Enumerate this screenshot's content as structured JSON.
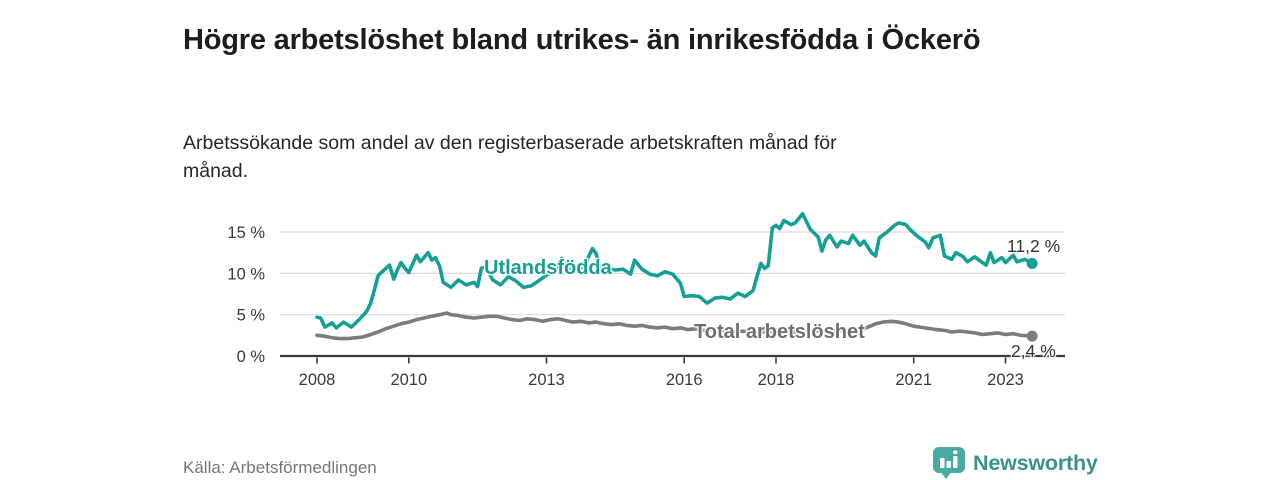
{
  "header": {
    "title": "Högre arbetslöshet bland utrikes- än inrikesfödda i Öckerö",
    "subtitle": "Arbetssökande som andel av den registerbaserade arbetskraften månad för månad."
  },
  "footer": {
    "source": "Källa: Arbetsförmedlingen",
    "brand": "Newsworthy"
  },
  "colors": {
    "accent_teal": "#16a095",
    "series_gray": "#7c7c7e",
    "brand_teal": "#3b928b",
    "brand_icon_teal": "#4aa9a1",
    "axis": "#3a3a3a",
    "grid": "#dcdcdc",
    "end_label": "#333333"
  },
  "chart_data": {
    "type": "line",
    "title": "Högre arbetslöshet bland utrikes- än inrikesfödda i Öckerö",
    "subtitle": "Arbetssökande som andel av den registerbaserade arbetskraften månad för månad.",
    "xlabel": "",
    "ylabel": "",
    "ylim": [
      0,
      18
    ],
    "xlim": [
      2007.2,
      2024.3
    ],
    "grid": "horizontal",
    "legend_position": "inline-labels",
    "y_ticks": [
      {
        "value": 0,
        "label": "0 %"
      },
      {
        "value": 5,
        "label": "5 %"
      },
      {
        "value": 10,
        "label": "10 %"
      },
      {
        "value": 15,
        "label": "15 %"
      }
    ],
    "x_ticks": [
      {
        "value": 2008,
        "label": "2008"
      },
      {
        "value": 2010,
        "label": "2010"
      },
      {
        "value": 2013,
        "label": "2013"
      },
      {
        "value": 2016,
        "label": "2016"
      },
      {
        "value": 2018,
        "label": "2018"
      },
      {
        "value": 2021,
        "label": "2021"
      },
      {
        "value": 2023,
        "label": "2023"
      }
    ],
    "series": [
      {
        "name": "Utlandsfödda",
        "color": "#16a095",
        "end_label": "11,2 %",
        "end_value": 11.2,
        "points": [
          [
            2008.0,
            4.7
          ],
          [
            2008.08,
            4.6
          ],
          [
            2008.17,
            3.5
          ],
          [
            2008.33,
            4.0
          ],
          [
            2008.42,
            3.4
          ],
          [
            2008.58,
            4.1
          ],
          [
            2008.75,
            3.5
          ],
          [
            2008.92,
            4.4
          ],
          [
            2009.0,
            4.9
          ],
          [
            2009.08,
            5.4
          ],
          [
            2009.17,
            6.4
          ],
          [
            2009.25,
            8.0
          ],
          [
            2009.33,
            9.7
          ],
          [
            2009.42,
            10.2
          ],
          [
            2009.58,
            11.0
          ],
          [
            2009.67,
            9.3
          ],
          [
            2009.75,
            10.4
          ],
          [
            2009.83,
            11.3
          ],
          [
            2009.92,
            10.6
          ],
          [
            2010.0,
            10.1
          ],
          [
            2010.17,
            12.2
          ],
          [
            2010.25,
            11.4
          ],
          [
            2010.42,
            12.5
          ],
          [
            2010.5,
            11.6
          ],
          [
            2010.58,
            11.9
          ],
          [
            2010.67,
            10.9
          ],
          [
            2010.75,
            8.9
          ],
          [
            2010.92,
            8.3
          ],
          [
            2011.08,
            9.2
          ],
          [
            2011.25,
            8.6
          ],
          [
            2011.42,
            8.9
          ],
          [
            2011.5,
            8.4
          ],
          [
            2011.58,
            10.6
          ],
          [
            2011.67,
            10.8
          ],
          [
            2011.83,
            9.2
          ],
          [
            2012.0,
            8.6
          ],
          [
            2012.17,
            9.6
          ],
          [
            2012.33,
            9.1
          ],
          [
            2012.5,
            8.3
          ],
          [
            2012.67,
            8.5
          ],
          [
            2012.83,
            9.1
          ],
          [
            2013.0,
            9.8
          ],
          [
            2013.17,
            10.2
          ],
          [
            2013.33,
            11.8
          ],
          [
            2013.5,
            10.4
          ],
          [
            2013.67,
            10.3
          ],
          [
            2013.83,
            11.0
          ],
          [
            2014.0,
            13.0
          ],
          [
            2014.08,
            12.4
          ],
          [
            2014.17,
            10.4
          ],
          [
            2014.33,
            10.6
          ],
          [
            2014.5,
            10.4
          ],
          [
            2014.67,
            10.5
          ],
          [
            2014.83,
            9.9
          ],
          [
            2014.92,
            11.6
          ],
          [
            2015.08,
            10.5
          ],
          [
            2015.25,
            9.9
          ],
          [
            2015.42,
            9.7
          ],
          [
            2015.58,
            10.2
          ],
          [
            2015.75,
            9.9
          ],
          [
            2015.92,
            8.8
          ],
          [
            2016.0,
            7.2
          ],
          [
            2016.17,
            7.3
          ],
          [
            2016.33,
            7.2
          ],
          [
            2016.5,
            6.4
          ],
          [
            2016.67,
            7.0
          ],
          [
            2016.83,
            7.1
          ],
          [
            2017.0,
            6.9
          ],
          [
            2017.17,
            7.6
          ],
          [
            2017.33,
            7.2
          ],
          [
            2017.5,
            7.9
          ],
          [
            2017.58,
            9.5
          ],
          [
            2017.67,
            11.2
          ],
          [
            2017.75,
            10.6
          ],
          [
            2017.83,
            10.9
          ],
          [
            2017.92,
            15.5
          ],
          [
            2018.0,
            15.8
          ],
          [
            2018.08,
            15.4
          ],
          [
            2018.17,
            16.4
          ],
          [
            2018.33,
            15.9
          ],
          [
            2018.42,
            16.1
          ],
          [
            2018.58,
            17.2
          ],
          [
            2018.75,
            15.3
          ],
          [
            2018.92,
            14.4
          ],
          [
            2019.0,
            12.7
          ],
          [
            2019.08,
            14.0
          ],
          [
            2019.17,
            14.6
          ],
          [
            2019.33,
            13.2
          ],
          [
            2019.42,
            13.9
          ],
          [
            2019.58,
            13.6
          ],
          [
            2019.67,
            14.6
          ],
          [
            2019.83,
            13.4
          ],
          [
            2019.92,
            13.9
          ],
          [
            2020.08,
            12.5
          ],
          [
            2020.17,
            12.1
          ],
          [
            2020.25,
            14.3
          ],
          [
            2020.42,
            15.0
          ],
          [
            2020.58,
            15.8
          ],
          [
            2020.67,
            16.1
          ],
          [
            2020.83,
            15.9
          ],
          [
            2020.92,
            15.3
          ],
          [
            2021.08,
            14.5
          ],
          [
            2021.25,
            13.8
          ],
          [
            2021.33,
            13.1
          ],
          [
            2021.42,
            14.3
          ],
          [
            2021.58,
            14.6
          ],
          [
            2021.67,
            12.1
          ],
          [
            2021.83,
            11.7
          ],
          [
            2021.92,
            12.5
          ],
          [
            2022.08,
            12.0
          ],
          [
            2022.17,
            11.4
          ],
          [
            2022.33,
            12.0
          ],
          [
            2022.42,
            11.6
          ],
          [
            2022.58,
            11.0
          ],
          [
            2022.67,
            12.5
          ],
          [
            2022.75,
            11.3
          ],
          [
            2022.92,
            11.9
          ],
          [
            2023.0,
            11.3
          ],
          [
            2023.17,
            12.2
          ],
          [
            2023.25,
            11.4
          ],
          [
            2023.42,
            11.7
          ],
          [
            2023.58,
            11.2
          ]
        ]
      },
      {
        "name": "Total arbetslöshet",
        "color": "#7c7c7e",
        "end_label": "2,4 %",
        "end_value": 2.4,
        "points": [
          [
            2008.0,
            2.5
          ],
          [
            2008.17,
            2.4
          ],
          [
            2008.33,
            2.2
          ],
          [
            2008.5,
            2.1
          ],
          [
            2008.67,
            2.1
          ],
          [
            2008.83,
            2.2
          ],
          [
            2009.0,
            2.3
          ],
          [
            2009.17,
            2.6
          ],
          [
            2009.33,
            2.9
          ],
          [
            2009.5,
            3.3
          ],
          [
            2009.67,
            3.6
          ],
          [
            2009.83,
            3.9
          ],
          [
            2010.0,
            4.1
          ],
          [
            2010.17,
            4.4
          ],
          [
            2010.33,
            4.6
          ],
          [
            2010.5,
            4.8
          ],
          [
            2010.67,
            5.0
          ],
          [
            2010.83,
            5.2
          ],
          [
            2010.92,
            5.0
          ],
          [
            2011.08,
            4.9
          ],
          [
            2011.25,
            4.7
          ],
          [
            2011.42,
            4.6
          ],
          [
            2011.58,
            4.7
          ],
          [
            2011.75,
            4.8
          ],
          [
            2011.92,
            4.8
          ],
          [
            2012.08,
            4.6
          ],
          [
            2012.25,
            4.4
          ],
          [
            2012.42,
            4.3
          ],
          [
            2012.58,
            4.5
          ],
          [
            2012.75,
            4.4
          ],
          [
            2012.92,
            4.2
          ],
          [
            2013.08,
            4.4
          ],
          [
            2013.25,
            4.5
          ],
          [
            2013.42,
            4.3
          ],
          [
            2013.58,
            4.1
          ],
          [
            2013.75,
            4.2
          ],
          [
            2013.92,
            4.0
          ],
          [
            2014.08,
            4.1
          ],
          [
            2014.25,
            3.9
          ],
          [
            2014.42,
            3.8
          ],
          [
            2014.58,
            3.9
          ],
          [
            2014.75,
            3.7
          ],
          [
            2014.92,
            3.6
          ],
          [
            2015.08,
            3.7
          ],
          [
            2015.25,
            3.5
          ],
          [
            2015.42,
            3.4
          ],
          [
            2015.58,
            3.5
          ],
          [
            2015.75,
            3.3
          ],
          [
            2015.92,
            3.4
          ],
          [
            2016.08,
            3.2
          ],
          [
            2016.25,
            3.3
          ],
          [
            2016.42,
            3.1
          ],
          [
            2016.58,
            3.2
          ],
          [
            2016.75,
            3.1
          ],
          [
            2016.92,
            3.0
          ],
          [
            2017.25,
            3.0
          ],
          [
            2017.5,
            2.9
          ],
          [
            2017.75,
            2.9
          ],
          [
            2018.0,
            2.9
          ],
          [
            2018.5,
            2.9
          ],
          [
            2019.0,
            3.0
          ],
          [
            2019.5,
            3.1
          ],
          [
            2019.92,
            3.3
          ],
          [
            2020.17,
            3.9
          ],
          [
            2020.33,
            4.1
          ],
          [
            2020.5,
            4.2
          ],
          [
            2020.67,
            4.1
          ],
          [
            2020.83,
            3.9
          ],
          [
            2021.0,
            3.6
          ],
          [
            2021.25,
            3.4
          ],
          [
            2021.5,
            3.2
          ],
          [
            2021.67,
            3.1
          ],
          [
            2021.83,
            2.9
          ],
          [
            2022.0,
            3.0
          ],
          [
            2022.17,
            2.9
          ],
          [
            2022.33,
            2.8
          ],
          [
            2022.5,
            2.6
          ],
          [
            2022.67,
            2.7
          ],
          [
            2022.83,
            2.8
          ],
          [
            2023.0,
            2.6
          ],
          [
            2023.17,
            2.7
          ],
          [
            2023.33,
            2.5
          ],
          [
            2023.58,
            2.4
          ]
        ]
      }
    ]
  }
}
